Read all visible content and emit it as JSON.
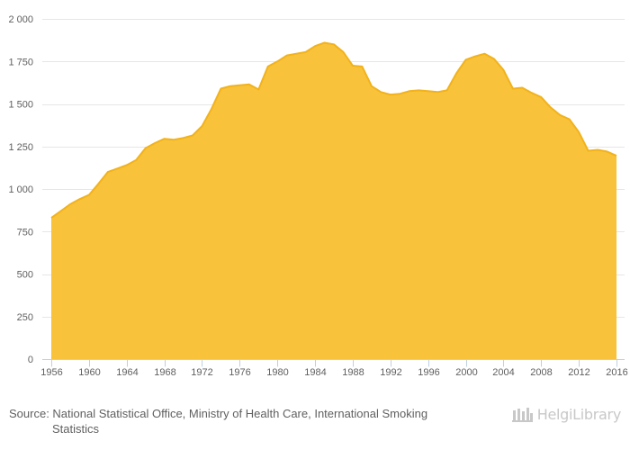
{
  "chart_data": {
    "type": "area",
    "title": "",
    "xlabel": "",
    "ylabel": "",
    "colors": {
      "fill": "#F8C23A",
      "stroke": "#F2B21B",
      "grid": "#E6E6E6",
      "axis": "#C0D0E0",
      "text": "#606060"
    },
    "grid": true,
    "legend": "none",
    "xlim": [
      1956,
      2016
    ],
    "ylim": [
      0,
      2000
    ],
    "y_ticks": [
      0,
      250,
      500,
      750,
      1000,
      1250,
      1500,
      1750,
      2000
    ],
    "y_tick_labels": [
      "0",
      "250",
      "500",
      "750",
      "1 000",
      "1 250",
      "1 500",
      "1 750",
      "2 000"
    ],
    "x_ticks": [
      1956,
      1960,
      1964,
      1968,
      1972,
      1976,
      1980,
      1984,
      1988,
      1992,
      1996,
      2000,
      2004,
      2008,
      2012,
      2016
    ],
    "x_tick_labels": [
      "1956",
      "1960",
      "1964",
      "1968",
      "1972",
      "1976",
      "1980",
      "1984",
      "1988",
      "1992",
      "1996",
      "2000",
      "2004",
      "2008",
      "2012",
      "2016"
    ],
    "series": [
      {
        "x": [
          1956,
          1957,
          1958,
          1959,
          1960,
          1961,
          1962,
          1963,
          1964,
          1965,
          1966,
          1967,
          1968,
          1969,
          1970,
          1971,
          1972,
          1973,
          1974,
          1975,
          1976,
          1977,
          1978,
          1979,
          1980,
          1981,
          1982,
          1983,
          1984,
          1985,
          1986,
          1987,
          1988,
          1989,
          1990,
          1991,
          1992,
          1993,
          1994,
          1995,
          1996,
          1997,
          1998,
          1999,
          2000,
          2001,
          2002,
          2003,
          2004,
          2005,
          2006,
          2007,
          2008,
          2009,
          2010,
          2011,
          2012,
          2013,
          2014,
          2015,
          2016
        ],
        "values": [
          830,
          870,
          910,
          940,
          965,
          1030,
          1100,
          1120,
          1140,
          1170,
          1240,
          1270,
          1295,
          1290,
          1300,
          1315,
          1370,
          1470,
          1590,
          1605,
          1610,
          1615,
          1585,
          1720,
          1750,
          1785,
          1795,
          1805,
          1840,
          1860,
          1850,
          1805,
          1725,
          1720,
          1605,
          1570,
          1555,
          1560,
          1575,
          1580,
          1575,
          1570,
          1580,
          1680,
          1760,
          1780,
          1795,
          1765,
          1700,
          1590,
          1595,
          1565,
          1540,
          1480,
          1435,
          1410,
          1335,
          1225,
          1230,
          1220,
          1195
        ]
      }
    ]
  },
  "footer": {
    "source_line_1": "Source: National Statistical Office, Ministry of Health Care, International Smoking",
    "source_line_2": "Statistics",
    "logo_text": "HelgiLibrary"
  }
}
